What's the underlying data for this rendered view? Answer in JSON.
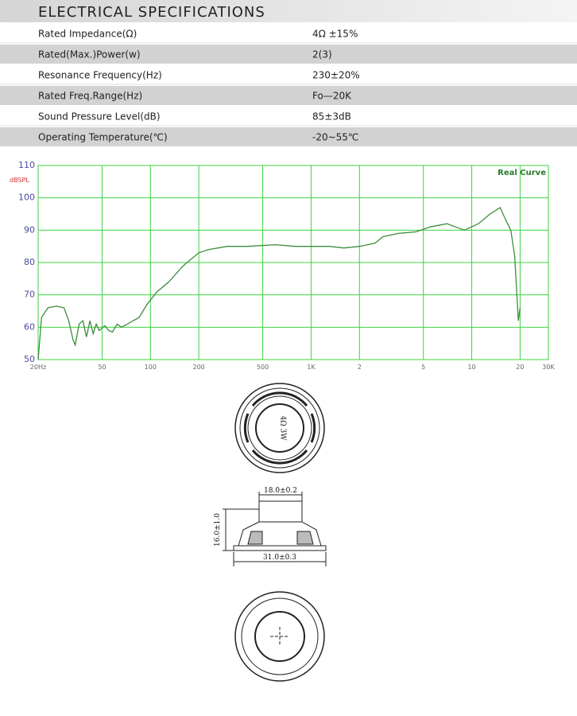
{
  "header": {
    "title": "ELECTRICAL SPECIFICATIONS"
  },
  "table": {
    "rows": [
      [
        "Rated Impedance(Ω)",
        "4Ω ±15%"
      ],
      [
        "Rated(Max.)Power(w)",
        "2(3)"
      ],
      [
        "Resonance Frequency(Hz)",
        "230±20%"
      ],
      [
        "Rated Freq.Range(Hz)",
        "Fo—20K"
      ],
      [
        "Sound Pressure Level(dB)",
        "85±3dB"
      ],
      [
        "Operating Temperature(℃)",
        "-20~55℃"
      ]
    ]
  },
  "chart_data": {
    "type": "line",
    "legend_label": "Real Curve",
    "ylabel": "dBSPL",
    "xscale": "log",
    "grid": true,
    "color": "#3c8c3c",
    "grid_color": "#3fd23f",
    "xlim": [
      20,
      30000
    ],
    "ylim": [
      50,
      110
    ],
    "xticks": [
      {
        "value": 20,
        "label": "20Hz"
      },
      50,
      100,
      200,
      500,
      {
        "value": 1000,
        "label": "1K"
      },
      {
        "value": 2000,
        "label": "2"
      },
      {
        "value": 5000,
        "label": "5"
      },
      {
        "value": 10000,
        "label": "10"
      },
      {
        "value": 20000,
        "label": "20"
      },
      {
        "value": 30000,
        "label": "30K"
      }
    ],
    "yticks": [
      50,
      60,
      70,
      80,
      90,
      100,
      110
    ],
    "x": [
      20,
      21,
      23,
      26,
      29,
      31,
      33,
      34,
      36,
      38,
      40,
      42,
      44,
      46,
      48,
      52,
      55,
      58,
      62,
      66,
      72,
      78,
      85,
      95,
      110,
      130,
      160,
      200,
      230,
      300,
      400,
      600,
      800,
      1000,
      1300,
      1600,
      2000,
      2500,
      2800,
      3500,
      4500,
      5500,
      7000,
      9000,
      11000,
      13000,
      15000,
      16000,
      17500,
      18500,
      19500,
      20000
    ],
    "values": [
      50,
      63,
      66,
      66.5,
      66,
      62,
      56,
      54.5,
      61,
      62,
      57,
      62,
      58,
      61,
      59,
      60.5,
      59,
      58.5,
      61,
      60,
      61,
      62,
      63,
      67,
      71,
      74,
      79,
      83,
      84,
      85,
      85,
      85.5,
      85,
      85,
      85,
      84.5,
      85,
      86,
      88,
      89,
      89.5,
      91,
      92,
      90,
      92,
      95,
      97,
      94,
      90,
      82,
      62,
      66
    ]
  },
  "drawing": {
    "marking": "4Ω 3W",
    "inner_dim": "18.0±0.2",
    "height_dim": "16.0±1.0",
    "outer_dim": "31.0±0.3"
  }
}
